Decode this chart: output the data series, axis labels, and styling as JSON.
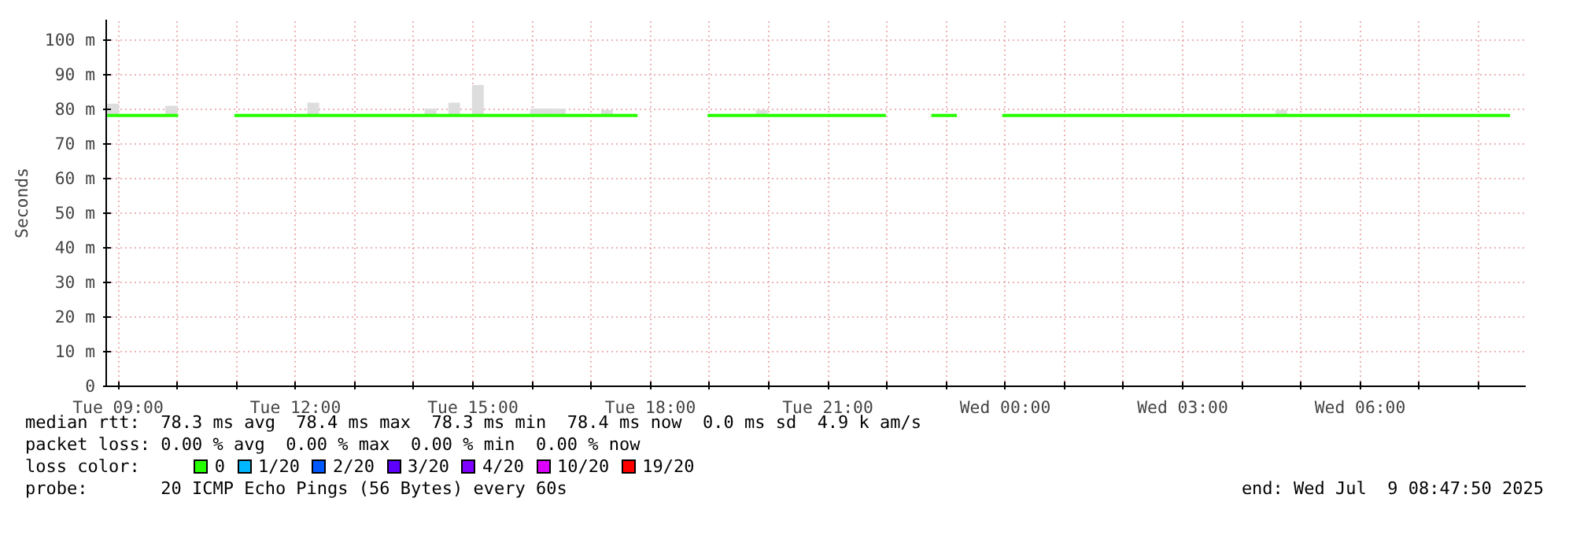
{
  "chart_data": {
    "type": "line",
    "ylabel": "Seconds",
    "xlim": [
      "2025-07-08T08:48",
      "2025-07-09T08:48"
    ],
    "xticks": [
      {
        "value": "2025-07-08T09:00",
        "label": "Tue 09:00"
      },
      {
        "value": "2025-07-08T10:00",
        "label": null
      },
      {
        "value": "2025-07-08T11:00",
        "label": null
      },
      {
        "value": "2025-07-08T12:00",
        "label": "Tue 12:00"
      },
      {
        "value": "2025-07-08T13:00",
        "label": null
      },
      {
        "value": "2025-07-08T14:00",
        "label": null
      },
      {
        "value": "2025-07-08T15:00",
        "label": "Tue 15:00"
      },
      {
        "value": "2025-07-08T16:00",
        "label": null
      },
      {
        "value": "2025-07-08T17:00",
        "label": null
      },
      {
        "value": "2025-07-08T18:00",
        "label": "Tue 18:00"
      },
      {
        "value": "2025-07-08T19:00",
        "label": null
      },
      {
        "value": "2025-07-08T20:00",
        "label": null
      },
      {
        "value": "2025-07-08T21:00",
        "label": "Tue 21:00"
      },
      {
        "value": "2025-07-08T22:00",
        "label": null
      },
      {
        "value": "2025-07-08T23:00",
        "label": null
      },
      {
        "value": "2025-07-09T00:00",
        "label": "Wed 00:00"
      },
      {
        "value": "2025-07-09T01:00",
        "label": null
      },
      {
        "value": "2025-07-09T02:00",
        "label": null
      },
      {
        "value": "2025-07-09T03:00",
        "label": "Wed 03:00"
      },
      {
        "value": "2025-07-09T04:00",
        "label": null
      },
      {
        "value": "2025-07-09T05:00",
        "label": null
      },
      {
        "value": "2025-07-09T06:00",
        "label": "Wed 06:00"
      },
      {
        "value": "2025-07-09T07:00",
        "label": null
      },
      {
        "value": "2025-07-09T08:00",
        "label": null
      }
    ],
    "ylim": [
      0,
      106
    ],
    "yticks": [
      {
        "value": 0,
        "label": "0"
      },
      {
        "value": 10,
        "label": "10 m"
      },
      {
        "value": 20,
        "label": "20 m"
      },
      {
        "value": 30,
        "label": "30 m"
      },
      {
        "value": 40,
        "label": "40 m"
      },
      {
        "value": 50,
        "label": "50 m"
      },
      {
        "value": 60,
        "label": "60 m"
      },
      {
        "value": 70,
        "label": "70 m"
      },
      {
        "value": 80,
        "label": "80 m"
      },
      {
        "value": 90,
        "label": "90 m"
      },
      {
        "value": 100,
        "label": "100 m"
      }
    ],
    "grid": true,
    "legend": "bottom",
    "legend_title": "loss color:",
    "series": [
      {
        "type": "bar",
        "color": "#dddddd",
        "x": [
          "2025-07-08T08:55",
          "2025-07-08T09:54",
          "2025-07-08T12:18",
          "2025-07-08T14:17",
          "2025-07-08T14:41",
          "2025-07-08T15:05",
          "2025-07-08T16:04",
          "2025-07-08T16:16",
          "2025-07-08T16:28",
          "2025-07-08T17:16",
          "2025-07-08T19:53",
          "2025-07-09T04:40"
        ],
        "base": [
          78,
          78,
          78,
          78,
          78,
          78,
          78,
          78,
          78,
          78,
          78,
          78
        ],
        "values": [
          3.7,
          3.1,
          4,
          2.3,
          4,
          9.1,
          2.3,
          2.3,
          2.3,
          1.9,
          1.9,
          1.9
        ]
      },
      {
        "name": "0",
        "color": "#26ff00",
        "x": [
          "2025-07-08T08:49",
          "2025-07-08T10:01",
          "2025-07-08T10:30",
          "2025-07-08T10:58",
          "2025-07-08T17:47",
          "2025-07-08T18:20",
          "2025-07-08T18:58",
          "2025-07-08T21:59",
          "2025-07-08T22:20",
          "2025-07-08T22:45",
          "2025-07-08T23:11",
          "2025-07-08T23:30",
          "2025-07-08T23:57",
          "2025-07-09T08:32"
        ],
        "values": [
          78.3,
          78.3,
          null,
          78.3,
          78.3,
          null,
          78.3,
          78.3,
          null,
          78.3,
          78.3,
          null,
          78.3,
          78.3
        ]
      },
      {
        "type": "line",
        "name": "1/20",
        "color": "#00b8ff"
      },
      {
        "type": "line",
        "name": "2/20",
        "color": "#0059ff"
      },
      {
        "type": "line",
        "name": "3/20",
        "color": "#5e00ff"
      },
      {
        "type": "line",
        "name": "4/20",
        "color": "#7e00ff"
      },
      {
        "type": "line",
        "name": "10/20",
        "color": "#dd00ff"
      },
      {
        "type": "line",
        "name": "19/20",
        "color": "#ff0000"
      }
    ],
    "annotations": [
      "median rtt:  78.3 ms avg  78.4 ms max  78.3 ms min  78.4 ms now  0.0 ms sd  4.9 k am/s",
      "packet loss: 0.00 % avg  0.00 % max  0.00 % min  0.00 % now",
      "probe:       20 ICMP Echo Pings (56 Bytes) every 60s",
      "end: Wed Jul  9 08:47:50 2025"
    ]
  }
}
